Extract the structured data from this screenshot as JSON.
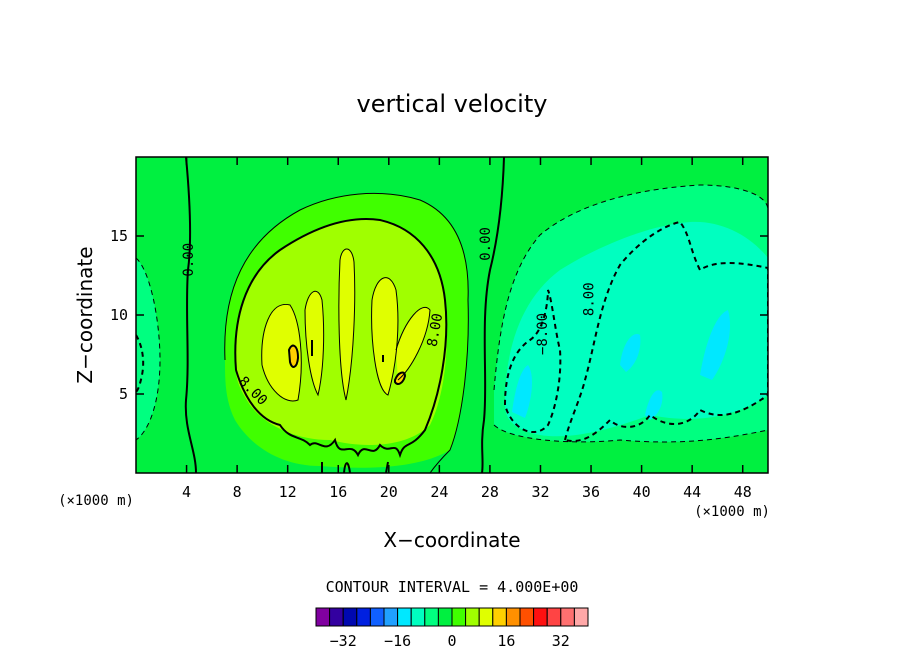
{
  "chart_data": {
    "type": "heatmap",
    "title": "vertical velocity",
    "xlabel": "X−coordinate",
    "ylabel": "Z−coordinate",
    "x_unit_label": "(×1000 m)",
    "y_unit_label": "(×1000 m)",
    "xlim": [
      0,
      50
    ],
    "ylim": [
      0,
      20
    ],
    "x_ticks": [
      4,
      8,
      12,
      16,
      20,
      24,
      28,
      32,
      36,
      40,
      44,
      48
    ],
    "y_ticks": [
      5,
      10,
      15
    ],
    "grid": false,
    "contour_interval_label": "CONTOUR INTERVAL = 4.000E+00",
    "contour_labels": [
      {
        "text": "0.00",
        "x": 4.5,
        "z": 13.5
      },
      {
        "text": "0.00",
        "x": 28.0,
        "z": 14.5
      },
      {
        "text": "8.00",
        "x": 9.0,
        "z": 5.0
      },
      {
        "text": "8.00",
        "x": 24.0,
        "z": 9.0
      },
      {
        "text": "8.00",
        "x": 36.2,
        "z": 11.0
      },
      {
        "text": "−8.00",
        "x": 32.5,
        "z": 8.8
      }
    ],
    "features": [
      {
        "kind": "updraft",
        "x_range": [
          7,
          26
        ],
        "z_range": [
          0,
          17
        ],
        "max_value": 16
      },
      {
        "kind": "downdraft",
        "x_range": [
          28,
          50
        ],
        "z_range": [
          1,
          17
        ],
        "min_value": -16
      },
      {
        "kind": "downdraft",
        "x_range": [
          0,
          2
        ],
        "z_range": [
          2,
          9
        ],
        "min_value": -4
      }
    ],
    "colorbar": {
      "colors": [
        "#8000a0",
        "#3300a0",
        "#0008b0",
        "#0020e0",
        "#1060ff",
        "#20a0ff",
        "#00e8ff",
        "#00ffc0",
        "#00ff80",
        "#00f040",
        "#40ff00",
        "#a0ff00",
        "#e0ff00",
        "#ffd000",
        "#ff9000",
        "#ff5000",
        "#ff1010",
        "#ff4444",
        "#ff7070",
        "#ffa8a8"
      ],
      "tick_labels": [
        "−32",
        "−16",
        "0",
        "16",
        "32"
      ],
      "tick_values": [
        -32,
        -16,
        0,
        16,
        32
      ],
      "range": [
        -40,
        40
      ]
    }
  }
}
